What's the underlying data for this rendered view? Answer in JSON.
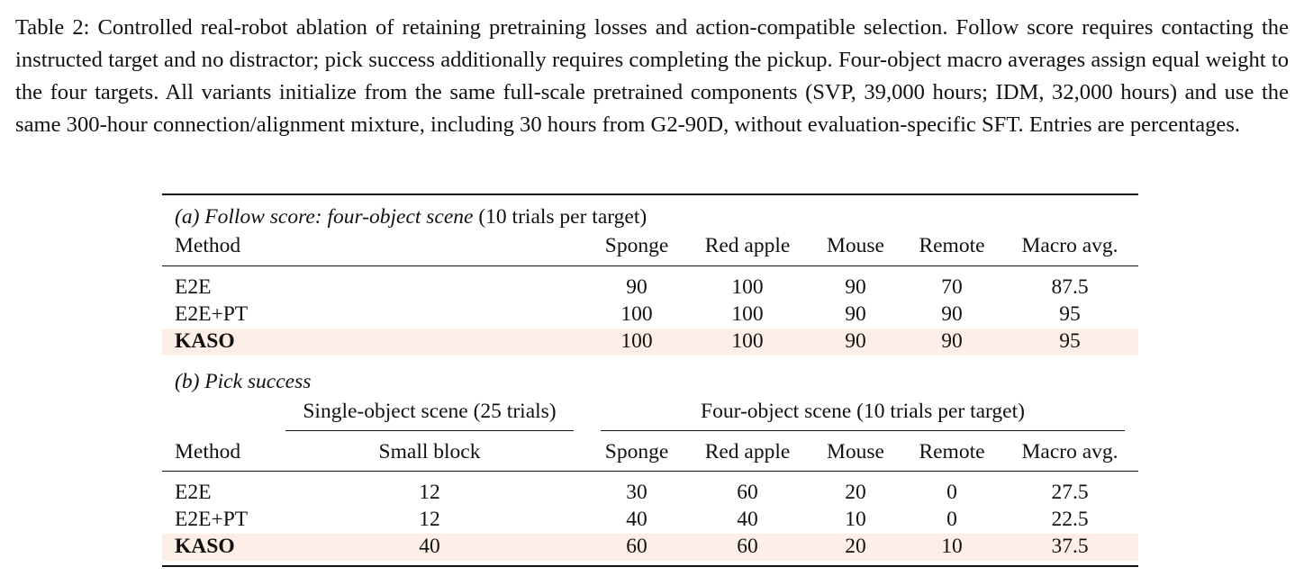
{
  "caption": "Table 2: Controlled real-robot ablation of retaining pretraining losses and action-compatible selection. Follow score requires contacting the instructed target and no distractor; pick success additionally requires completing the pickup. Four-object macro averages assign equal weight to the four targets. All variants initialize from the same full-scale pretrained components (SVP, 39,000 hours; IDM, 32,000 hours) and use the same 300-hour connection/alignment mixture, including 30 hours from G2-90D, without evaluation-specific SFT. Entries are percentages.",
  "panel_a": {
    "title_italic": "(a) Follow score: four-object scene",
    "title_rest": " (10 trials per target)",
    "headers": [
      "Method",
      "Sponge",
      "Red apple",
      "Mouse",
      "Remote",
      "Macro avg."
    ],
    "rows": [
      {
        "method": "E2E",
        "sponge": "90",
        "red_apple": "100",
        "mouse": "90",
        "remote": "70",
        "macro": "87.5"
      },
      {
        "method": "E2E+PT",
        "sponge": "100",
        "red_apple": "100",
        "mouse": "90",
        "remote": "90",
        "macro": "95"
      },
      {
        "method": "KASO",
        "sponge": "100",
        "red_apple": "100",
        "mouse": "90",
        "remote": "90",
        "macro": "95"
      }
    ]
  },
  "panel_b": {
    "title_italic": "(b) Pick success",
    "group_single": "Single-object scene (25 trials)",
    "group_four": "Four-object scene (10 trials per target)",
    "headers": [
      "Method",
      "Small block",
      "Sponge",
      "Red apple",
      "Mouse",
      "Remote",
      "Macro avg."
    ],
    "rows": [
      {
        "method": "E2E",
        "small_block": "12",
        "sponge": "30",
        "red_apple": "60",
        "mouse": "20",
        "remote": "0",
        "macro": "27.5"
      },
      {
        "method": "E2E+PT",
        "small_block": "12",
        "sponge": "40",
        "red_apple": "40",
        "mouse": "10",
        "remote": "0",
        "macro": "22.5"
      },
      {
        "method": "KASO",
        "small_block": "40",
        "sponge": "60",
        "red_apple": "60",
        "mouse": "20",
        "remote": "10",
        "macro": "37.5"
      }
    ]
  },
  "colors": {
    "highlight_row": "#fdeee8",
    "text": "#111111"
  }
}
